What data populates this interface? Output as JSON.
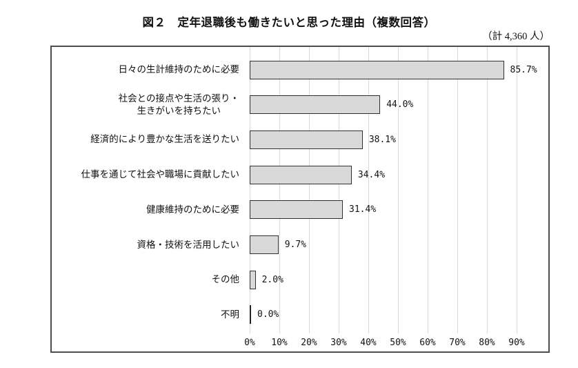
{
  "figure": {
    "title": "図２　定年退職後も働きたいと思った理由（複数回答）",
    "total_label": "（計 4,360 人）"
  },
  "chart_data": {
    "type": "bar",
    "orientation": "horizontal",
    "title": "図２　定年退職後も働きたいと思った理由（複数回答）",
    "subtitle": "（計 4,360 人）",
    "categories": [
      "日々の生計維持のために必要",
      "社会との接点や生活の張り・\n生きがいを持ちたい",
      "経済的により豊かな生活を送りたい",
      "仕事を通じて社会や職場に貢献したい",
      "健康維持のために必要",
      "資格・技術を活用したい",
      "その他",
      "不明"
    ],
    "values": [
      85.7,
      44.0,
      38.1,
      34.4,
      31.4,
      9.7,
      2.0,
      0.0
    ],
    "value_labels": [
      "85.7%",
      "44.0%",
      "38.1%",
      "34.4%",
      "31.4%",
      "9.7%",
      "2.0%",
      "0.0%"
    ],
    "x_ticks": [
      "0%",
      "10%",
      "20%",
      "30%",
      "40%",
      "50%",
      "60%",
      "70%",
      "80%",
      "90%"
    ],
    "xlim": [
      0,
      101
    ],
    "grid": true,
    "legend": false,
    "colors": {
      "bar_fill": "#d9d9d9",
      "bar_border": "#2e2e2e",
      "gridline": "#d9d9d9",
      "frame_border": "#4d4d4d",
      "zero_tick": "#222222",
      "text": "#111111"
    }
  }
}
